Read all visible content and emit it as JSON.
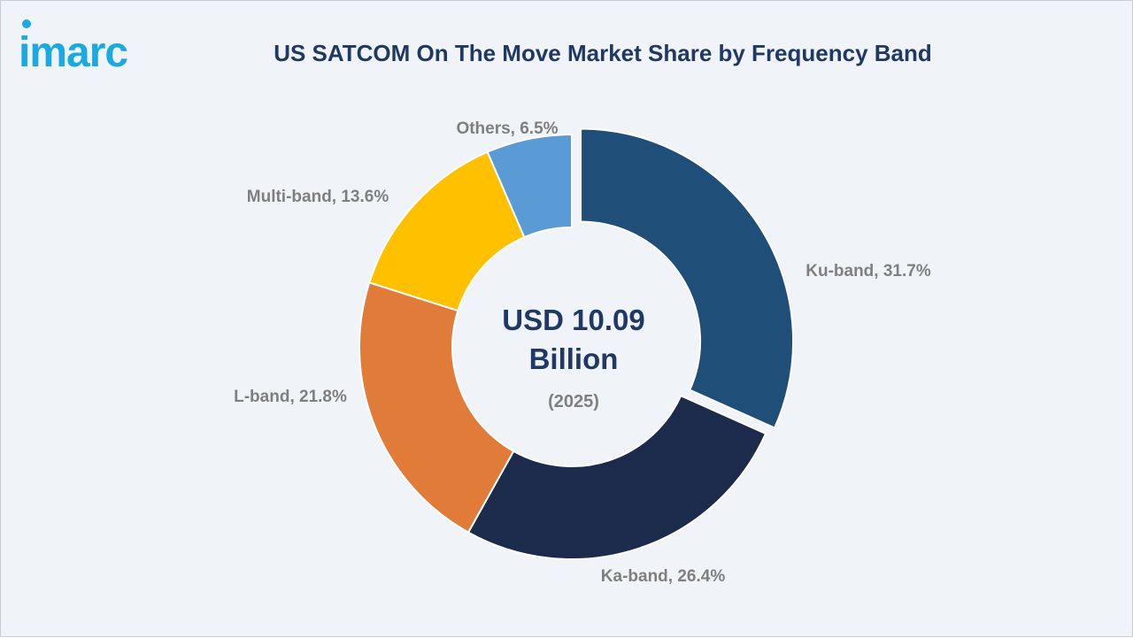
{
  "logo": {
    "text": "imarc",
    "color": "#1aa9e1"
  },
  "chart_data": {
    "type": "pie",
    "title": "US SATCOM On The Move Market Share by Frequency Band",
    "hole": true,
    "start_angle_deg": 0,
    "direction": "clockwise",
    "exploded": [
      "Ku-band"
    ],
    "center": {
      "total_line1": "USD 10.09",
      "total_line2": "Billion",
      "year": "(2025)"
    },
    "slices": [
      {
        "name": "Ku-band",
        "value": 31.7,
        "label": "Ku-band, 31.7%",
        "color": "#1f4e79"
      },
      {
        "name": "Ka-band",
        "value": 26.4,
        "label": "Ka-band, 26.4%",
        "color": "#1c2a4c"
      },
      {
        "name": "L-band",
        "value": 21.8,
        "label": "L-band, 21.8%",
        "color": "#e07b39"
      },
      {
        "name": "Multi-band",
        "value": 13.6,
        "label": "Multi-band, 13.6%",
        "color": "#ffc000"
      },
      {
        "name": "Others",
        "value": 6.5,
        "label": "Others, 6.5%",
        "color": "#5b9bd5"
      }
    ]
  }
}
